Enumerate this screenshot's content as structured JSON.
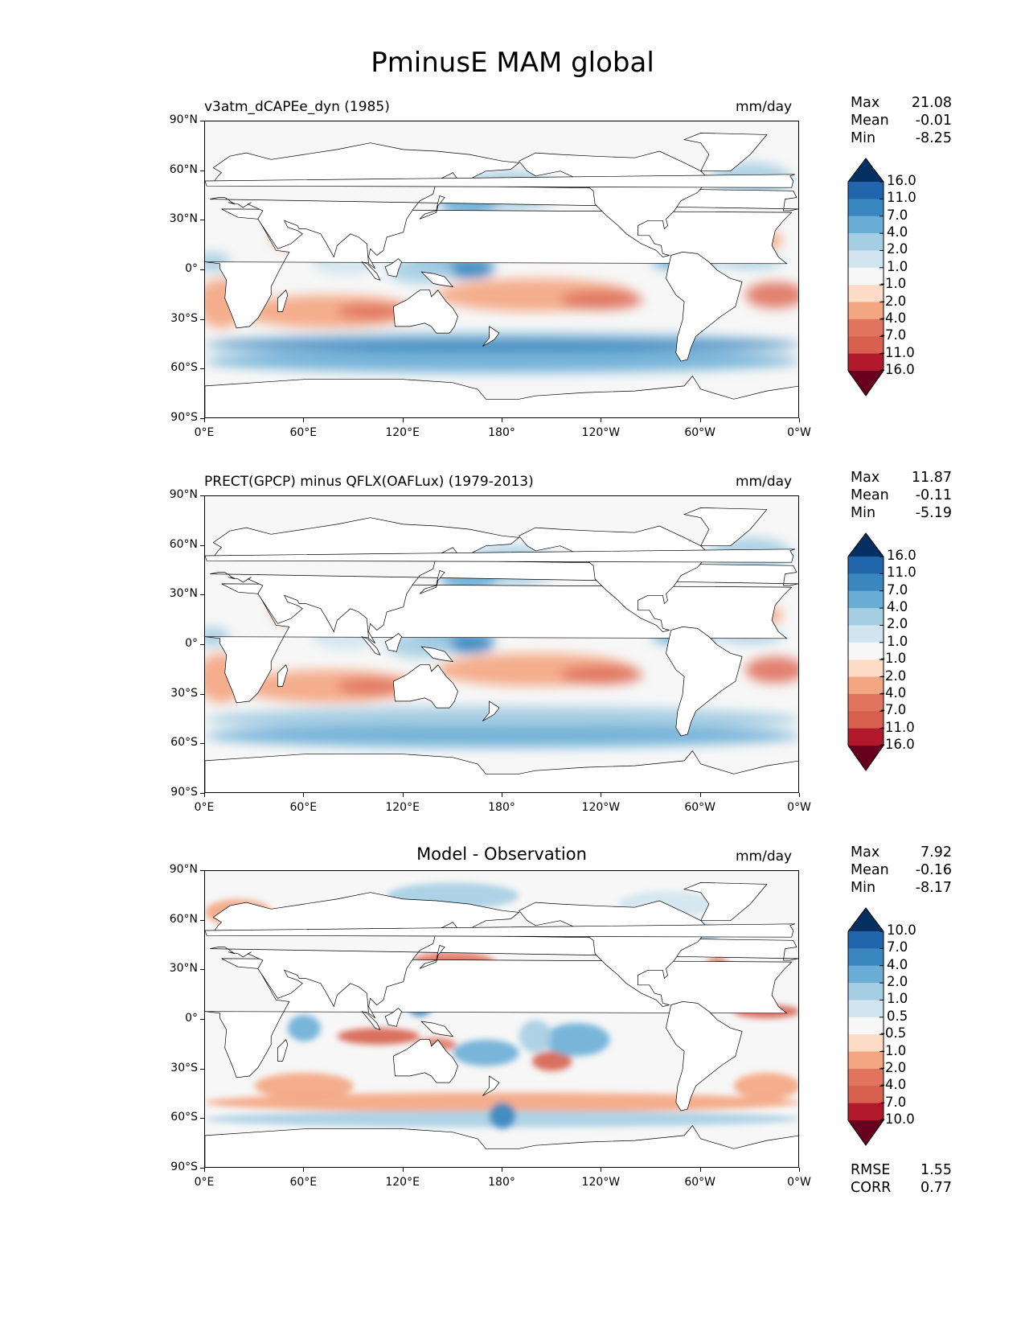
{
  "figure_title": "PminusE MAM global",
  "chart_data": [
    {
      "type": "heatmap",
      "panel": "test",
      "title": "v3atm_dCAPEe_dyn (1985)",
      "units": "mm/day",
      "stats": [
        {
          "label": "Max",
          "value": "21.08"
        },
        {
          "label": "Mean",
          "value": "-0.01"
        },
        {
          "label": "Min",
          "value": "-8.25"
        }
      ],
      "colorbar_levels": [
        "16.0",
        "11.0",
        "7.0",
        "4.0",
        "2.0",
        "1.0",
        "-1.0",
        "-2.0",
        "-4.0",
        "-7.0",
        "-11.0",
        "-16.0"
      ],
      "xlabel_ticks": [
        "0°E",
        "60°E",
        "120°E",
        "180°",
        "120°W",
        "60°W",
        "0°W"
      ],
      "ylabel_ticks": [
        "90°N",
        "60°N",
        "30°N",
        "0°",
        "30°S",
        "60°S",
        "90°S"
      ]
    },
    {
      "type": "heatmap",
      "panel": "reference",
      "title": "PRECT(GPCP) minus QFLX(OAFLux) (1979-2013)",
      "units": "mm/day",
      "stats": [
        {
          "label": "Max",
          "value": "11.87"
        },
        {
          "label": "Mean",
          "value": "-0.11"
        },
        {
          "label": "Min",
          "value": "-5.19"
        }
      ],
      "colorbar_levels": [
        "16.0",
        "11.0",
        "7.0",
        "4.0",
        "2.0",
        "1.0",
        "-1.0",
        "-2.0",
        "-4.0",
        "-7.0",
        "-11.0",
        "-16.0"
      ],
      "xlabel_ticks": [
        "0°E",
        "60°E",
        "120°E",
        "180°",
        "120°W",
        "60°W",
        "0°W"
      ],
      "ylabel_ticks": [
        "90°N",
        "60°N",
        "30°N",
        "0°",
        "30°S",
        "60°S",
        "90°S"
      ]
    },
    {
      "type": "heatmap",
      "panel": "difference",
      "title": "Model - Observation",
      "units": "mm/day",
      "stats": [
        {
          "label": "Max",
          "value": "7.92"
        },
        {
          "label": "Mean",
          "value": "-0.16"
        },
        {
          "label": "Min",
          "value": "-8.17"
        }
      ],
      "colorbar_levels": [
        "10.0",
        "7.0",
        "4.0",
        "2.0",
        "1.0",
        "0.5",
        "-0.5",
        "-1.0",
        "-2.0",
        "-4.0",
        "-7.0",
        "-10.0"
      ],
      "xlabel_ticks": [
        "0°E",
        "60°E",
        "120°E",
        "180°",
        "120°W",
        "60°W",
        "0°W"
      ],
      "ylabel_ticks": [
        "90°N",
        "60°N",
        "30°N",
        "0°",
        "30°S",
        "60°S",
        "90°S"
      ],
      "extra_stats": [
        {
          "label": "RMSE",
          "value": "1.55"
        },
        {
          "label": "CORR",
          "value": "0.77"
        }
      ]
    }
  ],
  "colors": {
    "palette": [
      "#053061",
      "#2166ac",
      "#3a87c0",
      "#6aaed6",
      "#a6cee3",
      "#d1e5f0",
      "#f7f7f7",
      "#fddbc7",
      "#f4a582",
      "#e0745f",
      "#d6604d",
      "#b2182b",
      "#67001f"
    ],
    "land": "#ffffff",
    "coast": "#000000"
  }
}
